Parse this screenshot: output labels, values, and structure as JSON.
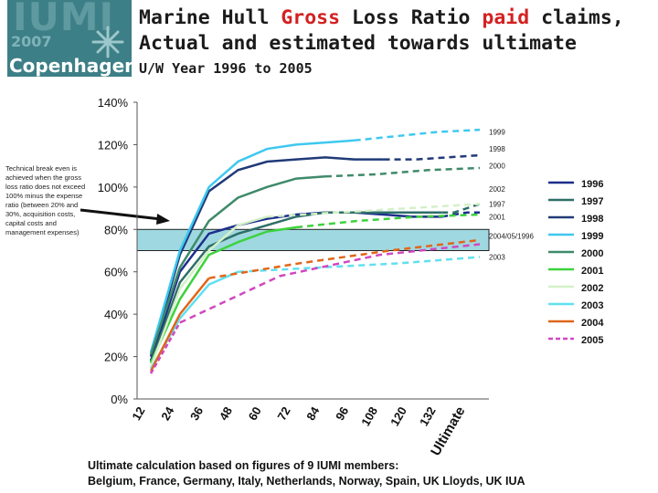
{
  "logo": {
    "name": "IUMI",
    "year": "2007",
    "city": "Copenhagen"
  },
  "header": {
    "title_part1": "Marine Hull ",
    "title_gross": "Gross",
    "title_part2": " Loss Ratio ",
    "title_paid": "paid",
    "title_part3": " claims,",
    "title_line2": "Actual and estimated towards ultimate",
    "subtitle": "U/W Year 1996 to 2005"
  },
  "note": "Technical break even is achieved when the gross loss ratio does not exceed 100% minus the expense ratio (between 20% and 30%, acquisition costs, capital costs and management expenses)",
  "footer": {
    "line1": "Ultimate calculation based on figures of 9 IUMI members:",
    "line2": "Belgium, France, Germany, Italy, Netherlands, Norway, Spain, UK Lloyds, UK IUA"
  },
  "colors": {
    "band": "#9fd8e0",
    "1996": "#1c2f8c",
    "1997": "#2e6f68",
    "1998": "#213a78",
    "1999": "#3ec8f0",
    "2000": "#3e8a6a",
    "2001": "#3ed23e",
    "2002": "#d4f0c8",
    "2003": "#60e0f0",
    "2004": "#e0661a",
    "2005": "#d048c0"
  },
  "chart_data": {
    "type": "line",
    "x": [
      "12",
      "24",
      "36",
      "48",
      "60",
      "72",
      "84",
      "96",
      "108",
      "120",
      "132",
      "Ultimate"
    ],
    "xlabel": "",
    "ylabel": "",
    "ylim": [
      0,
      140
    ],
    "yticks": [
      "0%",
      "20%",
      "40%",
      "60%",
      "80%",
      "100%",
      "120%",
      "140%"
    ],
    "break_even_band": [
      70,
      80
    ],
    "series": [
      {
        "name": "1996",
        "actual": [
          18,
          60,
          78,
          82,
          85,
          87,
          88,
          88,
          87,
          86,
          86
        ],
        "estimate": [
          86,
          87,
          88,
          88
        ]
      },
      {
        "name": "1997",
        "actual": [
          17,
          55,
          72,
          78,
          82,
          86,
          88,
          88,
          88,
          88,
          88
        ],
        "estimate": [
          88,
          88,
          90,
          92
        ]
      },
      {
        "name": "1998",
        "actual": [
          20,
          68,
          98,
          108,
          112,
          113,
          114,
          113,
          113
        ],
        "estimate": [
          113,
          113,
          114,
          115
        ]
      },
      {
        "name": "1999",
        "actual": [
          22,
          70,
          100,
          112,
          118,
          120,
          121,
          122
        ],
        "estimate": [
          122,
          124,
          126,
          127
        ]
      },
      {
        "name": "2000",
        "actual": [
          21,
          62,
          84,
          95,
          100,
          104,
          105
        ],
        "estimate": [
          105,
          106,
          108,
          109
        ]
      },
      {
        "name": "2001",
        "actual": [
          17,
          47,
          68,
          74,
          79,
          81
        ],
        "estimate": [
          81,
          84,
          86,
          87
        ]
      },
      {
        "name": "2002",
        "actual": [
          15,
          52,
          70,
          82,
          86
        ],
        "estimate": [
          86,
          88,
          90,
          92
        ]
      },
      {
        "name": "2003",
        "actual": [
          14,
          38,
          54,
          60
        ],
        "estimate": [
          60,
          62,
          64,
          67
        ]
      },
      {
        "name": "2004",
        "actual": [
          13,
          40,
          57
        ],
        "estimate": [
          57,
          64,
          70,
          75
        ]
      },
      {
        "name": "2005",
        "actual": [
          12,
          36
        ],
        "estimate": [
          36,
          58,
          68,
          73
        ]
      }
    ],
    "right_labels": [
      {
        "text": "1999",
        "y": 126
      },
      {
        "text": "1998",
        "y": 118
      },
      {
        "text": "2000",
        "y": 110
      },
      {
        "text": "2002",
        "y": 99
      },
      {
        "text": "1997",
        "y": 92
      },
      {
        "text": "2001",
        "y": 86
      },
      {
        "text": "2004/05/1996",
        "y": 77
      },
      {
        "text": "2003",
        "y": 67
      }
    ],
    "legend": [
      "1996",
      "1997",
      "1998",
      "1999",
      "2000",
      "2001",
      "2002",
      "2003",
      "2004",
      "2005"
    ],
    "legend_position": "right"
  }
}
